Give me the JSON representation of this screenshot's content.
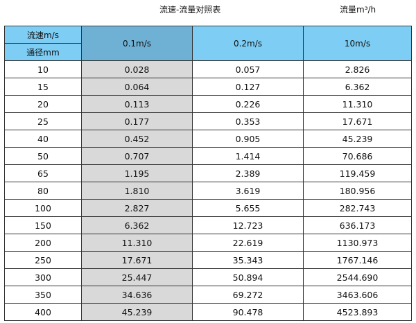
{
  "title": "流速-流量对照表",
  "unit_note": "流量m³/h",
  "header": {
    "velocity_label": "流速m/s",
    "diameter_label": "通径mm",
    "columns": [
      "0.1m/s",
      "0.2m/s",
      "10m/s"
    ]
  },
  "colors": {
    "header": "#7dcdf4",
    "header_highlight": "#6fb1d5",
    "highlight_column": "#d9d9d9"
  },
  "rows": [
    [
      "10",
      "0.028",
      "0.057",
      "2.826"
    ],
    [
      "15",
      "0.064",
      "0.127",
      "6.362"
    ],
    [
      "20",
      "0.113",
      "0.226",
      "11.310"
    ],
    [
      "25",
      "0.177",
      "0.353",
      "17.671"
    ],
    [
      "40",
      "0.452",
      "0.905",
      "45.239"
    ],
    [
      "50",
      "0.707",
      "1.414",
      "70.686"
    ],
    [
      "65",
      "1.195",
      "2.389",
      "119.459"
    ],
    [
      "80",
      "1.810",
      "3.619",
      "180.956"
    ],
    [
      "100",
      "2.827",
      "5.655",
      "282.743"
    ],
    [
      "150",
      "6.362",
      "12.723",
      "636.173"
    ],
    [
      "200",
      "11.310",
      "22.619",
      "1130.973"
    ],
    [
      "250",
      "17.671",
      "35.343",
      "1767.146"
    ],
    [
      "300",
      "25.447",
      "50.894",
      "2544.690"
    ],
    [
      "350",
      "34.636",
      "69.272",
      "3463.606"
    ],
    [
      "400",
      "45.239",
      "90.478",
      "4523.893"
    ]
  ]
}
